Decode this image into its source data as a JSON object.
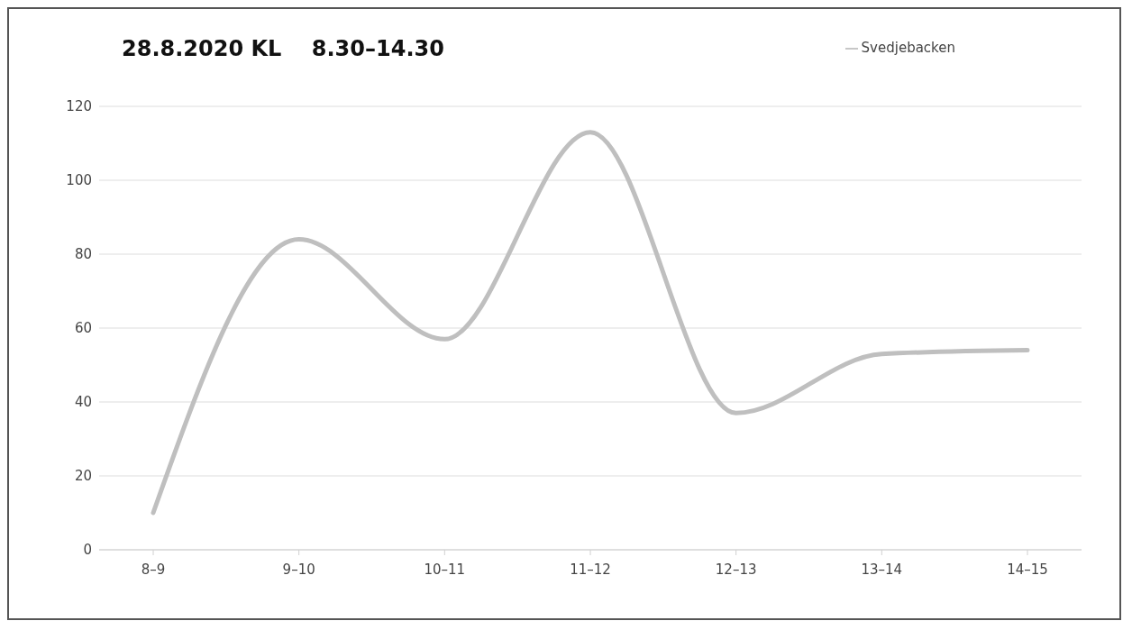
{
  "chart_data": {
    "type": "line",
    "title": "28.8.2020 KL    8.30–14.30",
    "categories": [
      "8–9",
      "9–10",
      "10–11",
      "11–12",
      "12–13",
      "13–14",
      "14–15"
    ],
    "series": [
      {
        "name": "Svedjebacken",
        "color": "#bfbfbf",
        "values": [
          10,
          84,
          57,
          113,
          37,
          53,
          54
        ]
      }
    ],
    "ylim": [
      0,
      120
    ],
    "yticks": [
      0,
      20,
      40,
      60,
      80,
      100,
      120
    ],
    "grid": "y",
    "legend": "top right",
    "marker": "none",
    "line_style": "solid"
  }
}
